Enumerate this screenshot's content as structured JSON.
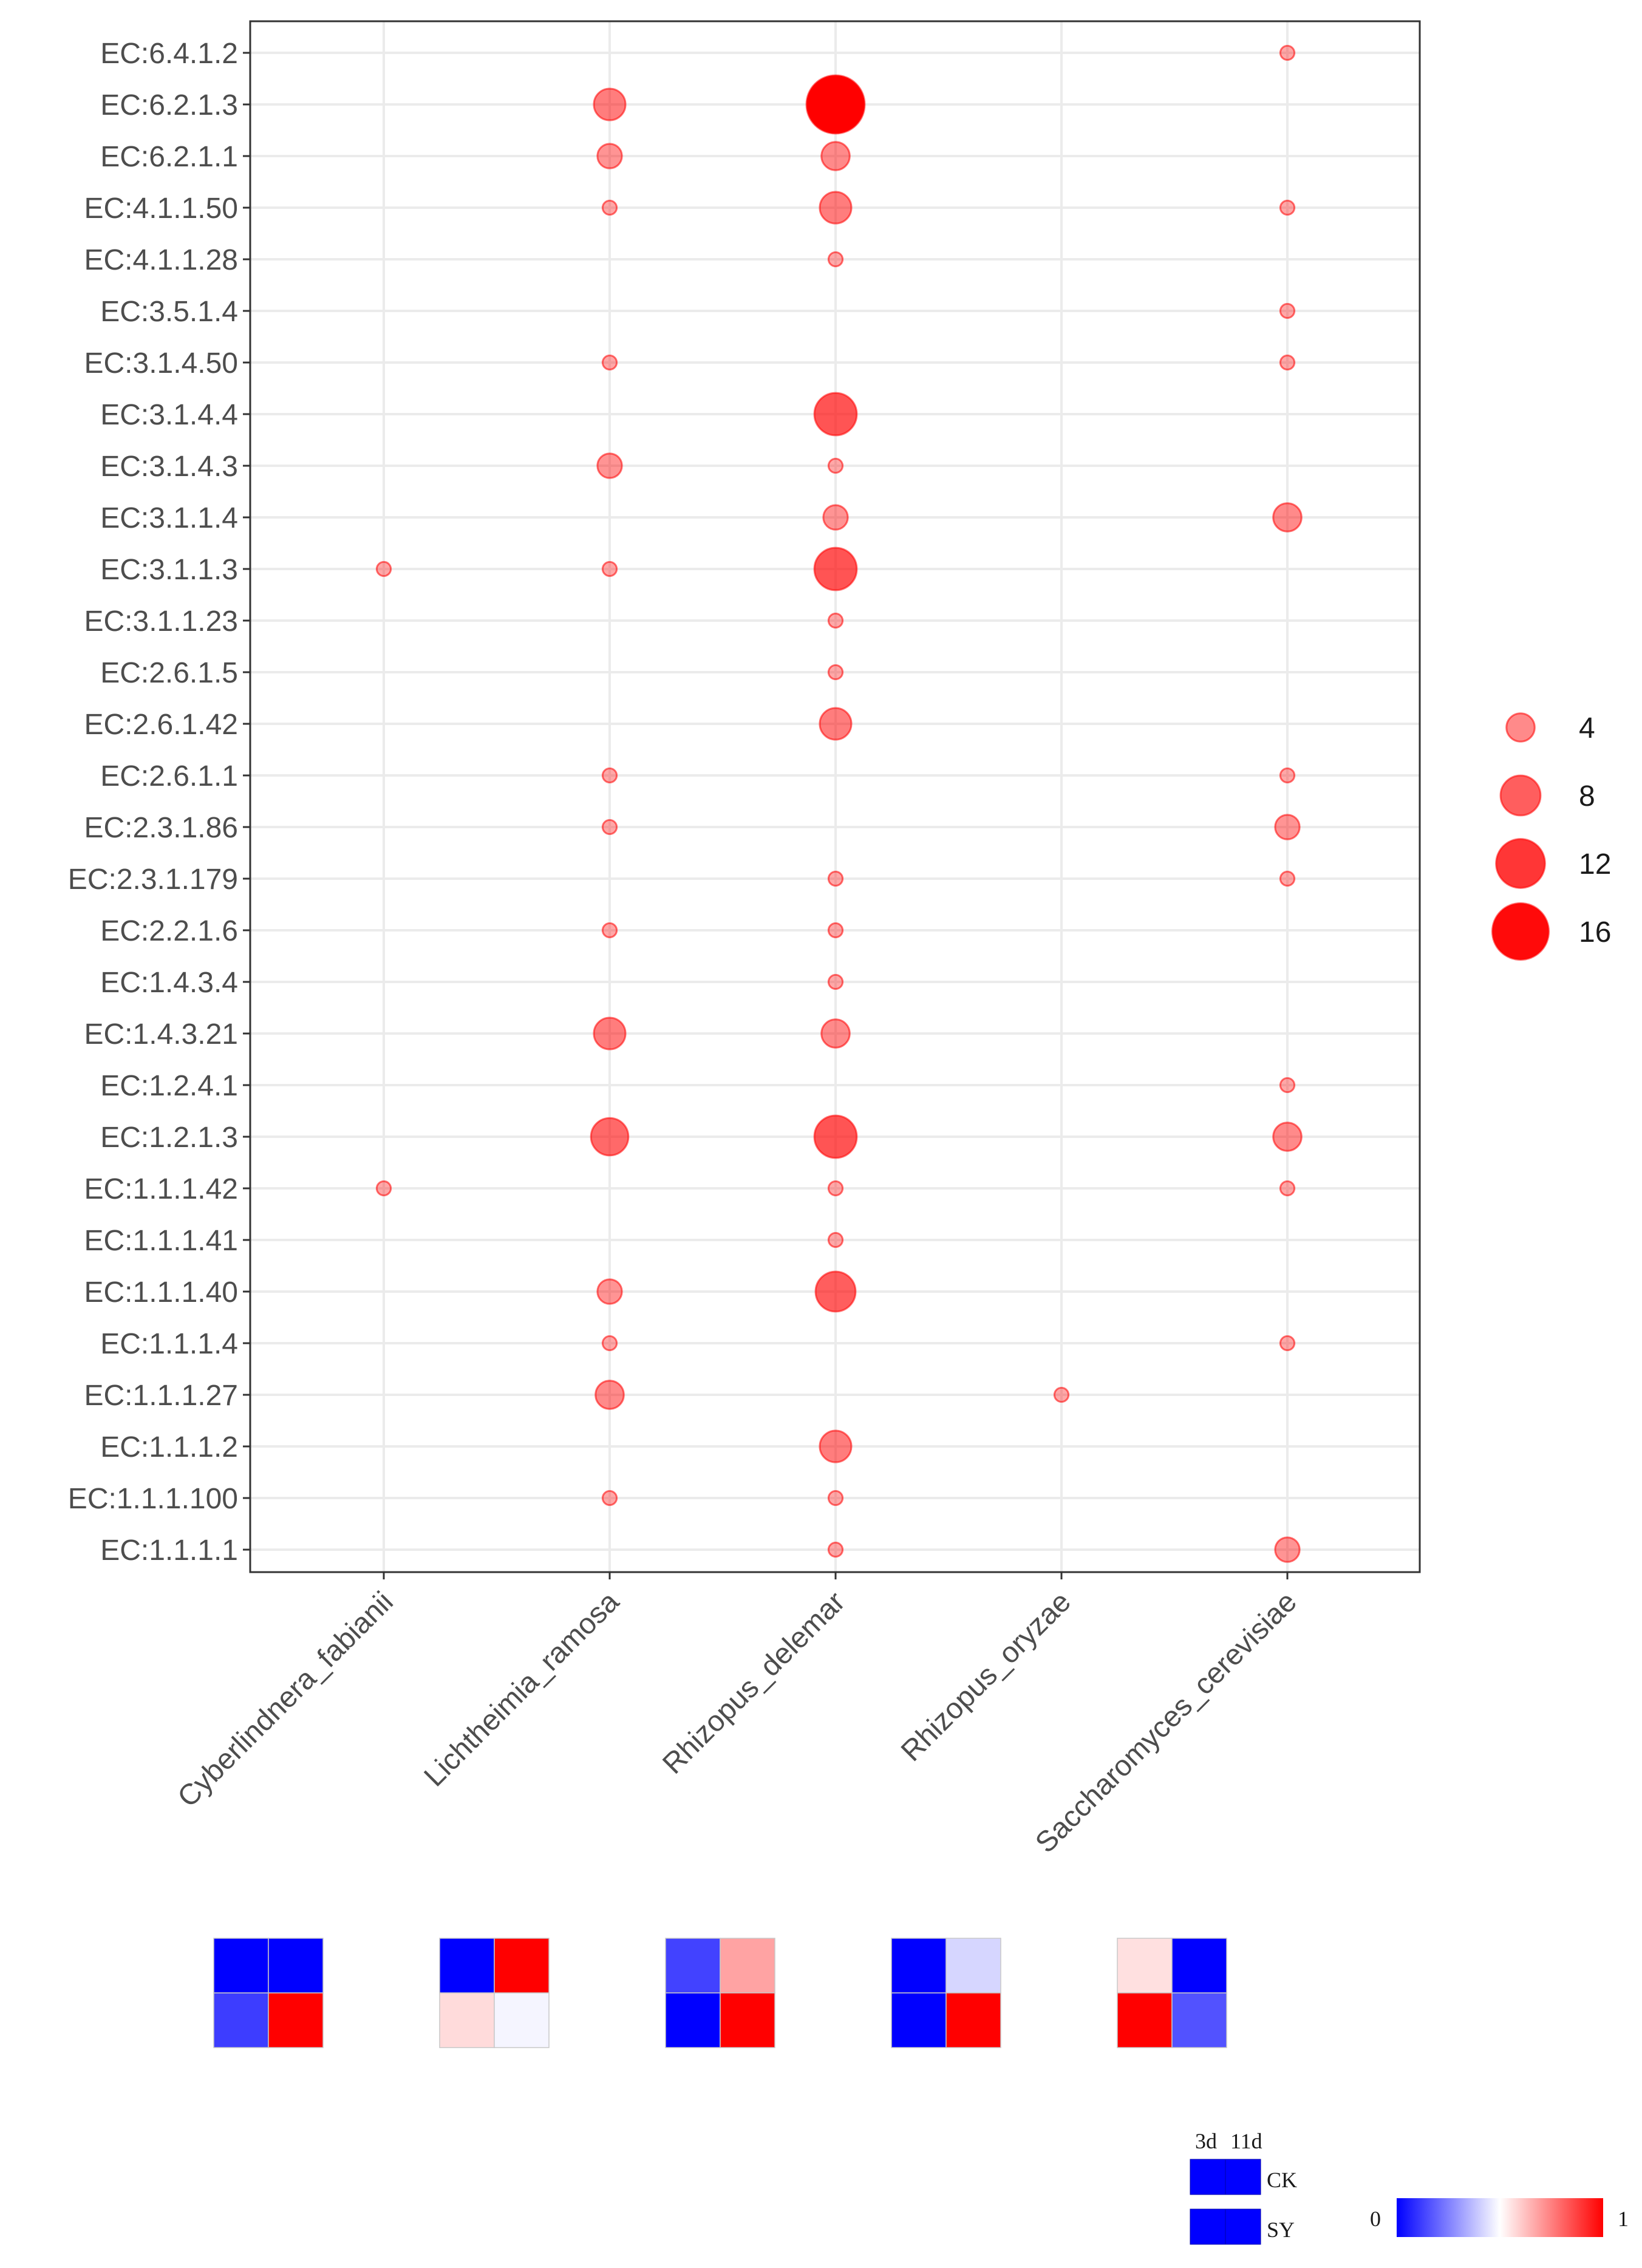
{
  "chart_data": {
    "type": "scatter",
    "subtype": "bubble",
    "title": "",
    "xlabel": "",
    "ylabel": "",
    "x_categories": [
      "Cyberlindnera_fabianii",
      "Lichtheimia_ramosa",
      "Rhizopus_delemar",
      "Rhizopus_oryzae",
      "Saccharomyces_cerevisiae"
    ],
    "y_categories": [
      "EC:6.4.1.2",
      "EC:6.2.1.3",
      "EC:6.2.1.1",
      "EC:4.1.1.50",
      "EC:4.1.1.28",
      "EC:3.5.1.4",
      "EC:3.1.4.50",
      "EC:3.1.4.4",
      "EC:3.1.4.3",
      "EC:3.1.1.4",
      "EC:3.1.1.3",
      "EC:3.1.1.23",
      "EC:2.6.1.5",
      "EC:2.6.1.42",
      "EC:2.6.1.1",
      "EC:2.3.1.86",
      "EC:2.3.1.179",
      "EC:2.2.1.6",
      "EC:1.4.3.4",
      "EC:1.4.3.21",
      "EC:1.2.4.1",
      "EC:1.2.1.3",
      "EC:1.1.1.42",
      "EC:1.1.1.41",
      "EC:1.1.1.40",
      "EC:1.1.1.4",
      "EC:1.1.1.27",
      "EC:1.1.1.2",
      "EC:1.1.1.100",
      "EC:1.1.1.1"
    ],
    "points": [
      {
        "x": "Saccharomyces_cerevisiae",
        "y": "EC:6.4.1.2",
        "value": 1
      },
      {
        "x": "Lichtheimia_ramosa",
        "y": "EC:6.2.1.3",
        "value": 5
      },
      {
        "x": "Rhizopus_delemar",
        "y": "EC:6.2.1.3",
        "value": 17
      },
      {
        "x": "Lichtheimia_ramosa",
        "y": "EC:6.2.1.1",
        "value": 3
      },
      {
        "x": "Rhizopus_delemar",
        "y": "EC:6.2.1.1",
        "value": 4
      },
      {
        "x": "Lichtheimia_ramosa",
        "y": "EC:4.1.1.50",
        "value": 1
      },
      {
        "x": "Rhizopus_delemar",
        "y": "EC:4.1.1.50",
        "value": 5
      },
      {
        "x": "Saccharomyces_cerevisiae",
        "y": "EC:4.1.1.50",
        "value": 1
      },
      {
        "x": "Rhizopus_delemar",
        "y": "EC:4.1.1.28",
        "value": 1
      },
      {
        "x": "Saccharomyces_cerevisiae",
        "y": "EC:3.5.1.4",
        "value": 1
      },
      {
        "x": "Lichtheimia_ramosa",
        "y": "EC:3.1.4.50",
        "value": 1
      },
      {
        "x": "Saccharomyces_cerevisiae",
        "y": "EC:3.1.4.50",
        "value": 1
      },
      {
        "x": "Rhizopus_delemar",
        "y": "EC:3.1.4.4",
        "value": 9
      },
      {
        "x": "Lichtheimia_ramosa",
        "y": "EC:3.1.4.3",
        "value": 3
      },
      {
        "x": "Rhizopus_delemar",
        "y": "EC:3.1.4.3",
        "value": 1
      },
      {
        "x": "Rhizopus_delemar",
        "y": "EC:3.1.1.4",
        "value": 3
      },
      {
        "x": "Saccharomyces_cerevisiae",
        "y": "EC:3.1.1.4",
        "value": 4
      },
      {
        "x": "Cyberlindnera_fabianii",
        "y": "EC:3.1.1.3",
        "value": 1
      },
      {
        "x": "Lichtheimia_ramosa",
        "y": "EC:3.1.1.3",
        "value": 1
      },
      {
        "x": "Rhizopus_delemar",
        "y": "EC:3.1.1.3",
        "value": 9
      },
      {
        "x": "Rhizopus_delemar",
        "y": "EC:3.1.1.23",
        "value": 1
      },
      {
        "x": "Rhizopus_delemar",
        "y": "EC:2.6.1.5",
        "value": 1
      },
      {
        "x": "Rhizopus_delemar",
        "y": "EC:2.6.1.42",
        "value": 5
      },
      {
        "x": "Lichtheimia_ramosa",
        "y": "EC:2.6.1.1",
        "value": 1
      },
      {
        "x": "Saccharomyces_cerevisiae",
        "y": "EC:2.6.1.1",
        "value": 1
      },
      {
        "x": "Lichtheimia_ramosa",
        "y": "EC:2.3.1.86",
        "value": 1
      },
      {
        "x": "Saccharomyces_cerevisiae",
        "y": "EC:2.3.1.86",
        "value": 3
      },
      {
        "x": "Rhizopus_delemar",
        "y": "EC:2.3.1.179",
        "value": 1
      },
      {
        "x": "Saccharomyces_cerevisiae",
        "y": "EC:2.3.1.179",
        "value": 1
      },
      {
        "x": "Lichtheimia_ramosa",
        "y": "EC:2.2.1.6",
        "value": 1
      },
      {
        "x": "Rhizopus_delemar",
        "y": "EC:2.2.1.6",
        "value": 1
      },
      {
        "x": "Rhizopus_delemar",
        "y": "EC:1.4.3.4",
        "value": 1
      },
      {
        "x": "Lichtheimia_ramosa",
        "y": "EC:1.4.3.21",
        "value": 5
      },
      {
        "x": "Rhizopus_delemar",
        "y": "EC:1.4.3.21",
        "value": 4
      },
      {
        "x": "Saccharomyces_cerevisiae",
        "y": "EC:1.2.4.1",
        "value": 1
      },
      {
        "x": "Lichtheimia_ramosa",
        "y": "EC:1.2.1.3",
        "value": 7
      },
      {
        "x": "Rhizopus_delemar",
        "y": "EC:1.2.1.3",
        "value": 9
      },
      {
        "x": "Saccharomyces_cerevisiae",
        "y": "EC:1.2.1.3",
        "value": 4
      },
      {
        "x": "Cyberlindnera_fabianii",
        "y": "EC:1.1.1.42",
        "value": 1
      },
      {
        "x": "Rhizopus_delemar",
        "y": "EC:1.1.1.42",
        "value": 1
      },
      {
        "x": "Saccharomyces_cerevisiae",
        "y": "EC:1.1.1.42",
        "value": 1
      },
      {
        "x": "Rhizopus_delemar",
        "y": "EC:1.1.1.41",
        "value": 1
      },
      {
        "x": "Lichtheimia_ramosa",
        "y": "EC:1.1.1.40",
        "value": 3
      },
      {
        "x": "Rhizopus_delemar",
        "y": "EC:1.1.1.40",
        "value": 8
      },
      {
        "x": "Lichtheimia_ramosa",
        "y": "EC:1.1.1.4",
        "value": 1
      },
      {
        "x": "Saccharomyces_cerevisiae",
        "y": "EC:1.1.1.4",
        "value": 1
      },
      {
        "x": "Lichtheimia_ramosa",
        "y": "EC:1.1.1.27",
        "value": 4
      },
      {
        "x": "Rhizopus_oryzae",
        "y": "EC:1.1.1.27",
        "value": 1
      },
      {
        "x": "Rhizopus_delemar",
        "y": "EC:1.1.1.2",
        "value": 5
      },
      {
        "x": "Lichtheimia_ramosa",
        "y": "EC:1.1.1.100",
        "value": 1
      },
      {
        "x": "Rhizopus_delemar",
        "y": "EC:1.1.1.100",
        "value": 1
      },
      {
        "x": "Rhizopus_delemar",
        "y": "EC:1.1.1.1",
        "value": 1
      },
      {
        "x": "Saccharomyces_cerevisiae",
        "y": "EC:1.1.1.1",
        "value": 3
      }
    ],
    "size_legend": {
      "values": [
        4,
        8,
        12,
        16
      ],
      "labels": [
        "4",
        "8",
        "12",
        "16"
      ]
    },
    "grid": true,
    "heatmaps": [
      {
        "organism": "Cyberlindnera_fabianii",
        "cells": [
          [
            0.0,
            0.0
          ],
          [
            0.12,
            1.0
          ]
        ]
      },
      {
        "organism": "Lichtheimia_ramosa",
        "cells": [
          [
            0.0,
            1.0
          ],
          [
            0.57,
            0.48
          ]
        ]
      },
      {
        "organism": "Rhizopus_delemar",
        "cells": [
          [
            0.13,
            0.68
          ],
          [
            0.0,
            1.0
          ]
        ]
      },
      {
        "organism": "Rhizopus_oryzae",
        "cells": [
          [
            0.0,
            0.42
          ],
          [
            0.0,
            1.0
          ]
        ]
      },
      {
        "organism": "Saccharomyces_cerevisiae",
        "cells": [
          [
            0.56,
            0.0
          ],
          [
            1.0,
            0.16
          ]
        ]
      }
    ],
    "heatmap_key": {
      "columns": [
        "3d",
        "11d"
      ],
      "rows": [
        "CK",
        "SY"
      ],
      "color_scale": {
        "min_label": "0",
        "max_label": "1",
        "low": "#0000ff",
        "mid": "#ffffff",
        "high": "#ff0000"
      }
    },
    "colors": {
      "bubble": "#ff0000",
      "bubble_fill_base": "#f26a6a",
      "grid": "#ebebeb",
      "panel_border": "#333333",
      "axis_text": "#4d4d4d"
    }
  }
}
